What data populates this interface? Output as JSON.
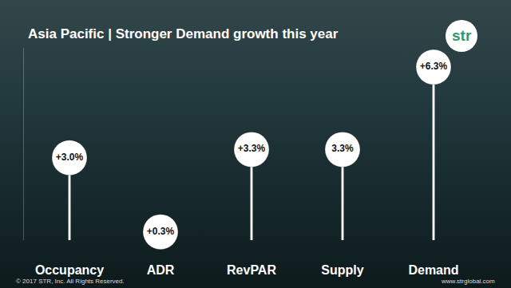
{
  "chart_data": {
    "type": "bar",
    "title": "Asia Pacific | Stronger Demand growth this year",
    "categories": [
      "Occupancy",
      "ADR",
      "RevPAR",
      "Supply",
      "Demand"
    ],
    "values": [
      3.0,
      0.3,
      3.3,
      3.3,
      6.3
    ],
    "value_labels": [
      "+3.0%",
      "+0.3%",
      "+3.3%",
      "3.3%",
      "+6.3%"
    ],
    "data_labels": true,
    "marker": "circle",
    "color": "#ffffff",
    "ylim": [
      0,
      7
    ],
    "yticks": [],
    "tick_labels": "x",
    "grid": false
  },
  "logo": "str",
  "footer": {
    "copyright": "© 2017 STR, Inc. All Rights Reserved.",
    "website": "www.strglobal.com"
  }
}
